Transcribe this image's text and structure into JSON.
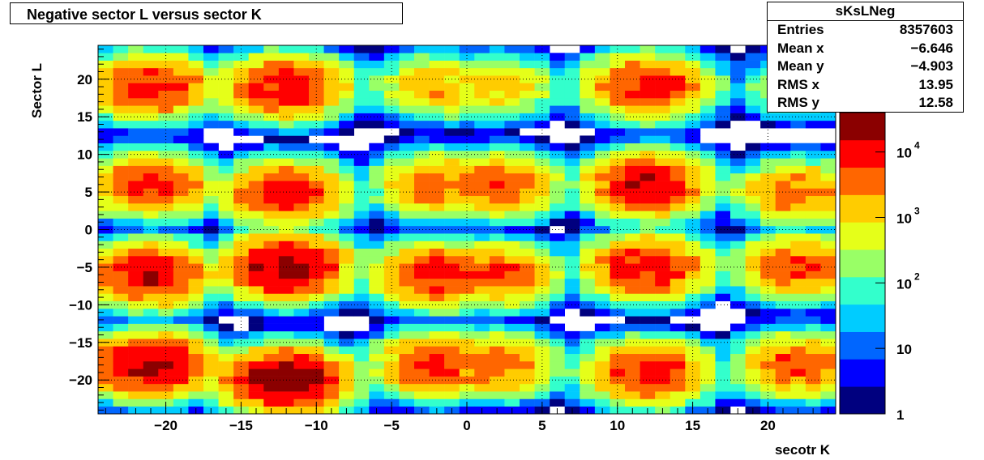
{
  "title": "Negative sector L versus sector K",
  "stats": {
    "name": "sKsLNeg",
    "rows": [
      {
        "label": "Entries",
        "value": "8357603"
      },
      {
        "label": "Mean x",
        "value": "−6.646"
      },
      {
        "label": "Mean y",
        "value": "−4.903"
      },
      {
        "label": "RMS x",
        "value": "13.95"
      },
      {
        "label": "RMS y",
        "value": "12.58"
      }
    ]
  },
  "chart_data": {
    "type": "heatmap",
    "title": "Negative sector L versus sector K",
    "xlabel": "secotr K",
    "ylabel": "Sector L",
    "xlim": [
      -24.5,
      24.5
    ],
    "ylim": [
      -24.5,
      24.5
    ],
    "x_ticks": [
      {
        "v": -20,
        "label": "−20"
      },
      {
        "v": -15,
        "label": "−15"
      },
      {
        "v": -10,
        "label": "−10"
      },
      {
        "v": -5,
        "label": "−5"
      },
      {
        "v": 0,
        "label": "0"
      },
      {
        "v": 5,
        "label": "5"
      },
      {
        "v": 10,
        "label": "10"
      },
      {
        "v": 15,
        "label": "15"
      },
      {
        "v": 20,
        "label": "20"
      }
    ],
    "y_ticks": [
      {
        "v": 20,
        "label": "20"
      },
      {
        "v": 15,
        "label": "15"
      },
      {
        "v": 10,
        "label": "10"
      },
      {
        "v": 5,
        "label": "5"
      },
      {
        "v": 0,
        "label": "0"
      },
      {
        "v": -5,
        "label": "−5"
      },
      {
        "v": -10,
        "label": "−10"
      },
      {
        "v": -15,
        "label": "−15"
      },
      {
        "v": -20,
        "label": "−20"
      }
    ],
    "z_scale": "log",
    "zlim": [
      1,
      40000
    ],
    "z_ticks": [
      {
        "v": 1,
        "base": "1",
        "exp": ""
      },
      {
        "v": 10,
        "base": "10",
        "exp": ""
      },
      {
        "v": 100,
        "base": "10",
        "exp": "2"
      },
      {
        "v": 1000,
        "base": "10",
        "exp": "3"
      },
      {
        "v": 10000,
        "base": "10",
        "exp": "4"
      }
    ],
    "grid": true,
    "palette": [
      "#00007f",
      "#0000ff",
      "#0066ff",
      "#00ccff",
      "#33ffcc",
      "#99ff66",
      "#e5ff19",
      "#ffcc00",
      "#ff6600",
      "#ff0000",
      "#8b0000"
    ],
    "clusters": [
      {
        "kx": -21,
        "ly": 19,
        "peak": 10000
      },
      {
        "kx": -12,
        "ly": 19,
        "peak": 12000
      },
      {
        "kx": -2,
        "ly": 19,
        "peak": 2000
      },
      {
        "kx": 2,
        "ly": 19,
        "peak": 1500
      },
      {
        "kx": 12,
        "ly": 19,
        "peak": 10000
      },
      {
        "kx": 22,
        "ly": 19,
        "peak": 500
      },
      {
        "kx": -21,
        "ly": 6,
        "peak": 8000
      },
      {
        "kx": -12,
        "ly": 5,
        "peak": 10000
      },
      {
        "kx": -2,
        "ly": 6,
        "peak": 4000
      },
      {
        "kx": 2,
        "ly": 6,
        "peak": 6000
      },
      {
        "kx": 12,
        "ly": 6,
        "peak": 15000
      },
      {
        "kx": 22,
        "ly": 5,
        "peak": 4000
      },
      {
        "kx": -21,
        "ly": -6,
        "peak": 15000
      },
      {
        "kx": -12,
        "ly": -5,
        "peak": 25000
      },
      {
        "kx": -2,
        "ly": -6,
        "peak": 10000
      },
      {
        "kx": 2,
        "ly": -6,
        "peak": 6000
      },
      {
        "kx": 12,
        "ly": -5,
        "peak": 12000
      },
      {
        "kx": 22,
        "ly": -5,
        "peak": 6000
      },
      {
        "kx": -21,
        "ly": -18,
        "peak": 20000
      },
      {
        "kx": -12,
        "ly": -20,
        "peak": 30000
      },
      {
        "kx": -2,
        "ly": -18,
        "peak": 8000
      },
      {
        "kx": 2,
        "ly": -18,
        "peak": 5000
      },
      {
        "kx": 12,
        "ly": -19,
        "peak": 10000
      },
      {
        "kx": 22,
        "ly": -18,
        "peak": 6000
      }
    ]
  }
}
